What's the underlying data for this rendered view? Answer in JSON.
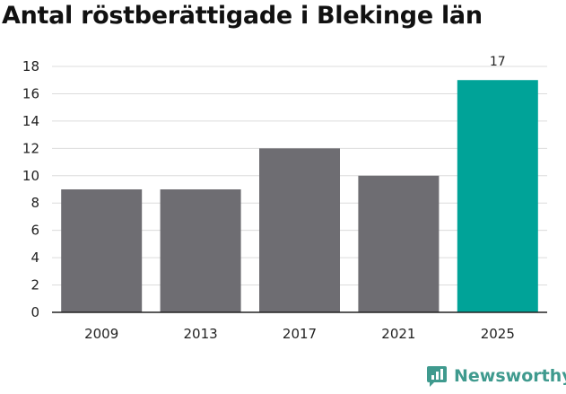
{
  "chart_data": {
    "type": "bar",
    "title": "Antal röstberättigade i Blekinge län",
    "categories": [
      "2009",
      "2013",
      "2017",
      "2021",
      "2025"
    ],
    "values": [
      9,
      9,
      12,
      10,
      17
    ],
    "data_labels": {
      "4": "17"
    },
    "yticks": [
      0,
      2,
      4,
      6,
      8,
      10,
      12,
      14,
      16,
      18
    ],
    "ylim": [
      0,
      18
    ],
    "grid": true,
    "bar_colors": [
      "#6e6d72",
      "#6e6d72",
      "#6e6d72",
      "#6e6d72",
      "#00a398"
    ]
  },
  "brand": {
    "name": "Newsworthy",
    "color": "#3f9a8e",
    "icon": "newsworthy-logo-icon"
  }
}
